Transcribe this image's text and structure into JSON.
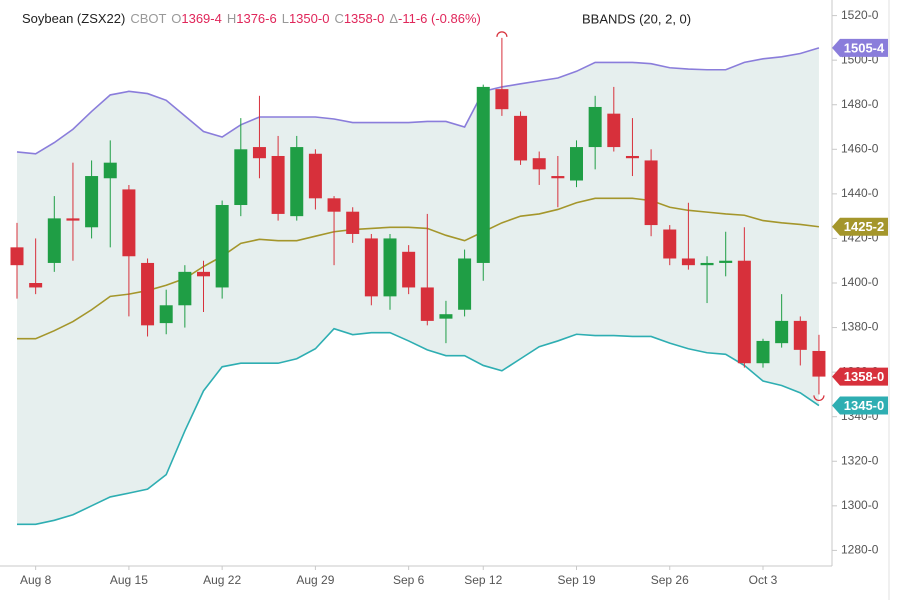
{
  "chart_data": {
    "type": "candlestick",
    "header": {
      "symbol": "Soybean (ZSX22)",
      "exchange": "CBOT",
      "fields": [
        {
          "key": "O",
          "value": "1369-4"
        },
        {
          "key": "H",
          "value": "1376-6"
        },
        {
          "key": "L",
          "value": "1350-0"
        },
        {
          "key": "C",
          "value": "1358-0"
        },
        {
          "key": "Δ",
          "value": "-11-6 (-0.86%)"
        }
      ],
      "indicator": "BBANDS (20, 2, 0)"
    },
    "categories": [
      null,
      "Aug 8",
      null,
      null,
      null,
      null,
      "Aug 15",
      null,
      null,
      null,
      null,
      "Aug 22",
      null,
      null,
      null,
      null,
      "Aug 29",
      null,
      null,
      null,
      null,
      "Sep 6",
      null,
      null,
      null,
      "Sep 12",
      null,
      null,
      null,
      null,
      "Sep 19",
      null,
      null,
      null,
      null,
      "Sep 26",
      null,
      null,
      null,
      null,
      "Oct 3",
      null,
      null,
      null
    ],
    "open": [
      1416,
      1400,
      1409,
      1429,
      1425,
      1447,
      1442,
      1409,
      1382,
      1390,
      1405,
      1398,
      1435,
      1461,
      1457,
      1430,
      1458,
      1438,
      1432,
      1420,
      1394,
      1414,
      1398,
      1384,
      1388,
      1409,
      1487,
      1475,
      1456,
      1448,
      1446,
      1461,
      1476,
      1457,
      1455,
      1424,
      1411,
      1408,
      1409,
      1410,
      1364,
      1373,
      1383,
      1369.5
    ],
    "high": [
      1427,
      1420,
      1439,
      1454,
      1455,
      1464,
      1444,
      1411,
      1397,
      1408,
      1410,
      1437,
      1474,
      1484,
      1466,
      1466,
      1460,
      1439,
      1434,
      1422,
      1422,
      1417,
      1431,
      1392,
      1415,
      1489,
      1510,
      1477,
      1459,
      1457,
      1464,
      1484,
      1488,
      1474,
      1460,
      1426,
      1436,
      1412,
      1423,
      1425,
      1375,
      1395,
      1385,
      1376.75
    ],
    "low": [
      1393,
      1395,
      1405,
      1410,
      1420,
      1416,
      1385,
      1376,
      1377,
      1380,
      1387,
      1393,
      1430,
      1447,
      1428,
      1428,
      1433,
      1408,
      1418,
      1390,
      1388,
      1395,
      1381,
      1373,
      1385,
      1401,
      1475,
      1453,
      1444,
      1434,
      1443,
      1451,
      1459,
      1448,
      1421,
      1408,
      1406,
      1391,
      1403,
      1362,
      1362,
      1371,
      1363,
      1350
    ],
    "close": [
      1408,
      1398,
      1429,
      1428,
      1448,
      1454,
      1412,
      1381,
      1390,
      1405,
      1403,
      1435,
      1460,
      1456,
      1431,
      1461,
      1438,
      1432,
      1422,
      1394,
      1420,
      1398,
      1383,
      1386,
      1411,
      1488,
      1478,
      1455,
      1451,
      1447,
      1461,
      1479,
      1461,
      1456,
      1426,
      1411,
      1408,
      1409,
      1410,
      1364,
      1374,
      1383,
      1370,
      1358
    ],
    "close_labels": [
      null,
      null,
      null,
      null,
      null,
      null,
      null,
      null,
      null,
      null,
      null,
      null,
      null,
      null,
      null,
      null,
      null,
      null,
      null,
      null,
      null,
      null,
      null,
      null,
      null,
      null,
      null,
      null,
      null,
      null,
      null,
      null,
      null,
      null,
      null,
      null,
      null,
      null,
      null,
      null,
      null,
      null,
      null,
      "1358-0"
    ],
    "up_color": "#1f9e45",
    "down_color": "#d7303b",
    "band_fill": "#e6efee",
    "series": [
      {
        "name": "Upper",
        "color": "#8a7ddb",
        "values": [
          1458.8,
          1458,
          1463,
          1469,
          1477,
          1484.4,
          1486,
          1485,
          1482,
          1475,
          1468,
          1465.5,
          1471,
          1474.5,
          1474.5,
          1474.5,
          1474.5,
          1473.6,
          1472,
          1472,
          1472,
          1472,
          1472.5,
          1472.5,
          1470,
          1486,
          1488,
          1489.4,
          1490.7,
          1492,
          1495,
          1499,
          1499,
          1499,
          1498.4,
          1496.6,
          1496,
          1495.7,
          1495.7,
          1499,
          1500.6,
          1501.5,
          1503,
          1505.5
        ],
        "value_labels": [
          null,
          null,
          null,
          null,
          null,
          null,
          null,
          null,
          null,
          null,
          null,
          null,
          null,
          null,
          null,
          null,
          null,
          null,
          null,
          null,
          null,
          null,
          null,
          null,
          null,
          null,
          null,
          null,
          null,
          null,
          null,
          null,
          null,
          null,
          null,
          null,
          null,
          null,
          null,
          null,
          null,
          null,
          null,
          "1505-4"
        ]
      },
      {
        "name": "Middle",
        "color": "#a4962b",
        "values": [
          1375,
          1375,
          1378.6,
          1382.7,
          1388,
          1394,
          1395,
          1396.6,
          1399,
          1402,
          1407.4,
          1412,
          1417.8,
          1419.6,
          1419,
          1419,
          1421,
          1423,
          1424,
          1424.5,
          1425,
          1425,
          1424.5,
          1421.4,
          1419,
          1423,
          1427,
          1430,
          1431,
          1433,
          1436,
          1438,
          1438,
          1438,
          1437,
          1434,
          1432.6,
          1431.8,
          1431,
          1430.4,
          1428,
          1427,
          1426.3,
          1425.25
        ],
        "value_labels": [
          null,
          null,
          null,
          null,
          null,
          null,
          null,
          null,
          null,
          null,
          null,
          null,
          null,
          null,
          null,
          null,
          null,
          null,
          null,
          null,
          null,
          null,
          null,
          null,
          null,
          null,
          null,
          null,
          null,
          null,
          null,
          null,
          null,
          null,
          null,
          null,
          null,
          null,
          null,
          null,
          null,
          null,
          null,
          "1425-2"
        ]
      },
      {
        "name": "Lower",
        "color": "#2eaeb2",
        "values": [
          1291.7,
          1291.7,
          1293.5,
          1296,
          1300,
          1304,
          1305.7,
          1307.5,
          1314,
          1333.6,
          1351.6,
          1362.4,
          1364,
          1364,
          1364,
          1366,
          1370.5,
          1379.5,
          1376.8,
          1377.7,
          1377.7,
          1374,
          1370,
          1367.4,
          1367.4,
          1363,
          1360.6,
          1366,
          1371.4,
          1374,
          1377,
          1376.4,
          1376.4,
          1376,
          1376,
          1373,
          1370.5,
          1368.7,
          1368,
          1363,
          1356,
          1354,
          1350.7,
          1345
        ],
        "value_labels": [
          null,
          null,
          null,
          null,
          null,
          null,
          null,
          null,
          null,
          null,
          null,
          null,
          null,
          null,
          null,
          null,
          null,
          null,
          null,
          null,
          null,
          null,
          null,
          null,
          null,
          null,
          null,
          null,
          null,
          null,
          null,
          null,
          null,
          null,
          null,
          null,
          null,
          null,
          null,
          null,
          null,
          null,
          null,
          "1345-0"
        ]
      }
    ],
    "ylim": [
      1273,
      1527
    ],
    "yticks": [
      {
        "value": 1280,
        "label": "1280-0"
      },
      {
        "value": 1300,
        "label": "1300-0"
      },
      {
        "value": 1320,
        "label": "1320-0"
      },
      {
        "value": 1340,
        "label": "1340-0"
      },
      {
        "value": 1360,
        "label": "1360-0"
      },
      {
        "value": 1380,
        "label": "1380-0"
      },
      {
        "value": 1400,
        "label": "1400-0"
      },
      {
        "value": 1420,
        "label": "1420-0"
      },
      {
        "value": 1440,
        "label": "1440-0"
      },
      {
        "value": 1460,
        "label": "1460-0"
      },
      {
        "value": 1480,
        "label": "1480-0"
      },
      {
        "value": 1500,
        "label": "1500-0"
      },
      {
        "value": 1520,
        "label": "1520-0"
      }
    ]
  }
}
